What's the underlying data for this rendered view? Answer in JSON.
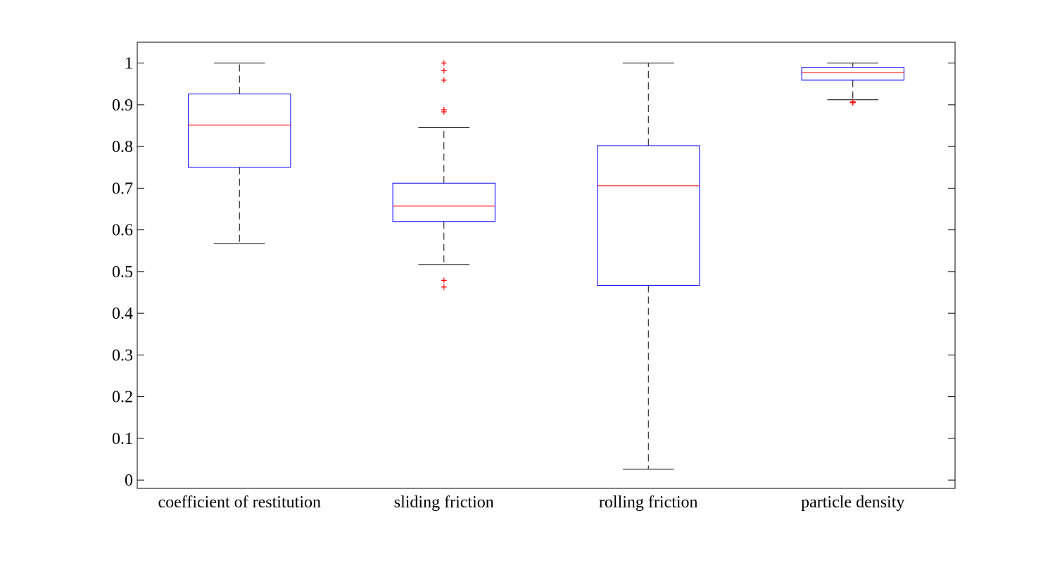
{
  "chart_data": {
    "type": "box",
    "ylim": [
      -0.02,
      1.05
    ],
    "yticks": [
      0,
      0.1,
      0.2,
      0.3,
      0.4,
      0.5,
      0.6,
      0.7,
      0.8,
      0.9,
      1
    ],
    "ytick_labels": [
      "0",
      "0.1",
      "0.2",
      "0.3",
      "0.4",
      "0.5",
      "0.6",
      "0.7",
      "0.8",
      "0.9",
      "1"
    ],
    "grid": false,
    "colors": {
      "box": "#0000ff",
      "median": "#ff0000",
      "whisker": "#000000",
      "outlier": "#ff0000"
    },
    "boxes": [
      {
        "label": "coefficient of restitution",
        "whisker_low": 0.567,
        "q1": 0.75,
        "median": 0.851,
        "q3": 0.926,
        "whisker_high": 1.0,
        "outliers": []
      },
      {
        "label": "sliding friction",
        "whisker_low": 0.517,
        "q1": 0.62,
        "median": 0.657,
        "q3": 0.712,
        "whisker_high": 0.845,
        "outliers": [
          1.0,
          0.982,
          0.959,
          0.888,
          0.883,
          0.479,
          0.463
        ]
      },
      {
        "label": "rolling friction",
        "whisker_low": 0.026,
        "q1": 0.467,
        "median": 0.706,
        "q3": 0.802,
        "whisker_high": 1.0,
        "outliers": []
      },
      {
        "label": "particle density",
        "whisker_low": 0.912,
        "q1": 0.959,
        "median": 0.977,
        "q3": 0.99,
        "whisker_high": 1.0,
        "outliers": [
          0.907,
          0.906,
          0.905
        ]
      }
    ]
  }
}
